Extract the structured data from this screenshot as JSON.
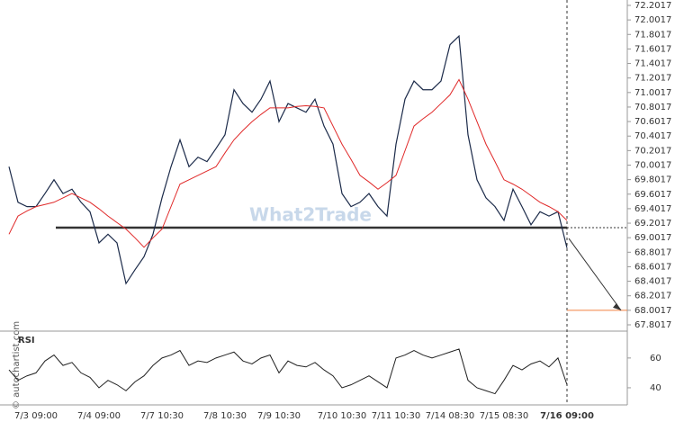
{
  "chart_data": {
    "type": "line",
    "watermark": "What2Trade",
    "credit": "© autochartist.com",
    "categories": [
      null,
      null,
      null,
      "7/3 09:00",
      null,
      null,
      null,
      null,
      null,
      null,
      "7/4 09:00",
      null,
      null,
      null,
      null,
      null,
      null,
      "7/7 10:30",
      null,
      null,
      null,
      null,
      null,
      null,
      "7/8 10:30",
      null,
      null,
      null,
      null,
      null,
      "7/9 10:30",
      null,
      null,
      null,
      null,
      null,
      null,
      "7/10 10:30",
      null,
      null,
      null,
      null,
      null,
      "7/11 10:30",
      null,
      null,
      null,
      null,
      null,
      "7/14 08:30",
      null,
      null,
      null,
      null,
      null,
      "7/15 08:30",
      null,
      null,
      null,
      null,
      null,
      null,
      "7/16 09:00"
    ],
    "series": [
      {
        "color": "#1c2b4a",
        "values": [
          69.98,
          69.49,
          69.43,
          69.43,
          69.61,
          69.8,
          69.61,
          69.67,
          69.49,
          69.36,
          68.93,
          69.05,
          68.93,
          68.37,
          68.56,
          68.74,
          69.05,
          69.55,
          69.98,
          70.35,
          69.98,
          70.11,
          70.05,
          70.23,
          70.42,
          71.04,
          70.85,
          70.73,
          70.91,
          71.16,
          70.6,
          70.85,
          70.79,
          70.73,
          70.91,
          70.54,
          70.29,
          69.61,
          69.43,
          69.49,
          69.61,
          69.43,
          69.3,
          70.29,
          70.91,
          71.16,
          71.04,
          71.04,
          71.16,
          71.66,
          71.78,
          70.42,
          69.8,
          69.55,
          69.43,
          69.24,
          69.67,
          69.43,
          69.18,
          69.36,
          69.3,
          69.36,
          68.86
        ]
      },
      {
        "color": "#e02828",
        "values": [
          69.05,
          69.3,
          69.37,
          69.43,
          69.46,
          69.49,
          69.55,
          69.61,
          69.55,
          69.49,
          69.4,
          69.3,
          69.21,
          69.12,
          69.0,
          68.87,
          69.0,
          69.12,
          69.43,
          69.74,
          69.8,
          69.86,
          69.92,
          69.98,
          70.17,
          70.35,
          70.48,
          70.6,
          70.7,
          70.79,
          70.79,
          70.79,
          70.81,
          70.82,
          70.81,
          70.79,
          70.54,
          70.29,
          70.08,
          69.86,
          69.77,
          69.67,
          69.76,
          69.86,
          70.2,
          70.54,
          70.64,
          70.73,
          70.85,
          70.97,
          71.18,
          70.91,
          70.6,
          70.29,
          70.05,
          69.8,
          69.74,
          69.67,
          69.58,
          69.49,
          69.43,
          69.36,
          69.24
        ]
      }
    ],
    "ylim": [
      67.8017,
      72.2017
    ],
    "yticks": [
      72.2017,
      72.0017,
      71.8017,
      71.6017,
      71.4017,
      71.2017,
      71.0017,
      70.8017,
      70.6017,
      70.4017,
      70.2017,
      70.0017,
      69.8017,
      69.6017,
      69.4017,
      69.2017,
      69.0017,
      68.8017,
      68.6017,
      68.4017,
      68.2017,
      68.0017,
      67.8017
    ],
    "support_level": 69.14,
    "target_level": 68.0017,
    "rsi": {
      "label": "RSI",
      "color": "#222",
      "ylim": [
        30,
        72
      ],
      "yticks": [
        40,
        60
      ],
      "values": [
        52,
        45,
        48,
        50,
        58,
        62,
        55,
        57,
        50,
        47,
        40,
        45,
        42,
        38,
        44,
        48,
        55,
        60,
        62,
        65,
        55,
        58,
        57,
        60,
        62,
        64,
        58,
        56,
        60,
        62,
        50,
        58,
        55,
        54,
        57,
        52,
        48,
        40,
        42,
        45,
        48,
        44,
        40,
        60,
        62,
        65,
        62,
        60,
        62,
        64,
        66,
        45,
        40,
        38,
        36,
        45,
        55,
        52,
        56,
        58,
        54,
        60,
        42
      ]
    }
  }
}
